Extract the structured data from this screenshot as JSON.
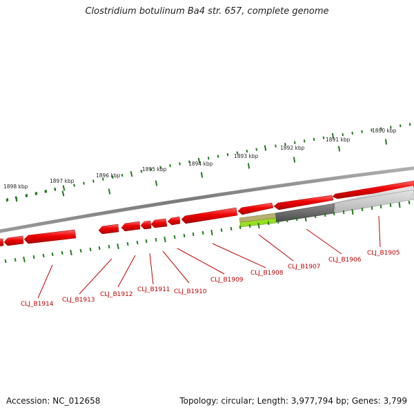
{
  "title": "Clostridium botulinum Ba4 str. 657, complete genome",
  "accession": "Accession: NC_012658",
  "summary": "Topology: circular; Length: 3,977,794 bp; Genes: 3,799",
  "colors": {
    "backbone": "#8c8c8c",
    "gene_red": "#ee0000",
    "gene_dark": "#606060",
    "gene_light": "#d0d0d0",
    "gene_olive": "#b8b070",
    "gene_lime": "#99dd22",
    "tick_green": "#1f7a1f",
    "label_red": "#c00000"
  },
  "kbp_labels": [
    "1890 kbp",
    "1891 kbp",
    "1892 kbp",
    "1893 kbp",
    "1894 kbp",
    "1895 kbp",
    "1896 kbp",
    "1897 kbp",
    "1898 kbp"
  ],
  "gene_labels": [
    "CLJ_B1905",
    "CLJ_B1906",
    "CLJ_B1907",
    "CLJ_B1908",
    "CLJ_B1909",
    "CLJ_B1910",
    "CLJ_B1911",
    "CLJ_B1912",
    "CLJ_B1913",
    "CLJ_B1914"
  ]
}
